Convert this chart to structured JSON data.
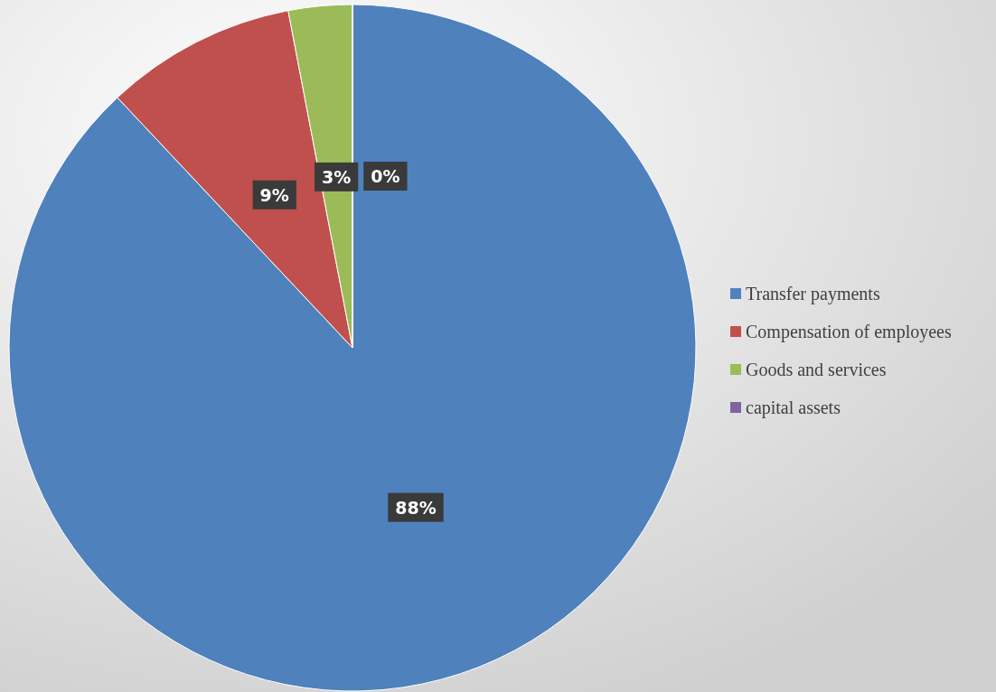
{
  "chart_data": {
    "type": "pie",
    "categories": [
      "Transfer payments",
      "Compensation of employees",
      "Goods and services",
      "capital assets"
    ],
    "values": [
      88,
      9,
      3,
      0
    ],
    "colors": [
      "#4f81bd",
      "#c0504d",
      "#9bbb59",
      "#8064a2"
    ],
    "value_labels": [
      "88%",
      "9%",
      "3%",
      "0%"
    ],
    "legend": "right"
  }
}
